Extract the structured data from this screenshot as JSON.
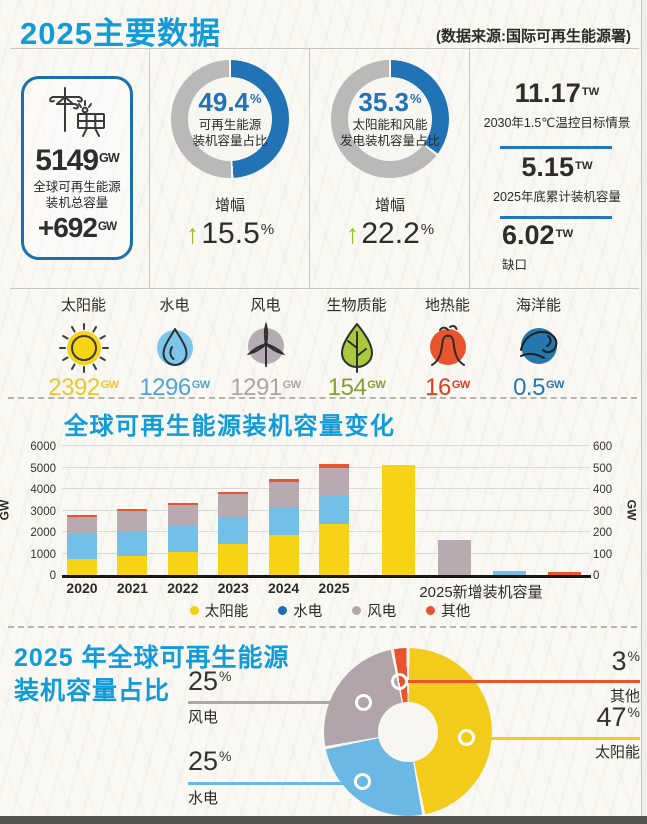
{
  "header": {
    "title": "2025主要数据",
    "source": "(数据来源:国际可再生能源署)"
  },
  "units": {
    "gw": "GW",
    "tw": "TW",
    "pct": "%",
    "up_arrow": "↑"
  },
  "colors": {
    "accent_blue": "#129bd9",
    "donut_blue": "#2273b5",
    "donut_gray": "#b9b9b9",
    "growth_green": "#8fc31f",
    "hole_bg": "#f8f6f1",
    "axis_black": "#171717"
  },
  "stats": {
    "total": {
      "value": "5149",
      "label_line1": "全球可再生能源",
      "label_line2": "装机总容量",
      "delta": "+692"
    },
    "share_renewable": {
      "pct": 49.4,
      "pct_text": "49.4",
      "caption_line1": "可再生能源",
      "caption_line2": "装机容量占比",
      "growth_label": "增幅",
      "growth": "15.5"
    },
    "share_solar_wind": {
      "pct": 35.3,
      "pct_text": "35.3",
      "caption_line1": "太阳能和风能",
      "caption_line2": "发电装机容量占比",
      "growth_label": "增幅",
      "growth": "22.2"
    },
    "targets": [
      {
        "value": "11.17",
        "label": "2030年1.5℃温控目标情景"
      },
      {
        "value": "5.15",
        "label": "2025年底累计装机容量"
      },
      {
        "value": "6.02",
        "label": "缺口"
      }
    ]
  },
  "energy_types": [
    {
      "name": "太阳能",
      "value": "2392",
      "icon": "sun-icon",
      "color": "#f6d315",
      "value_color": "#efc52c"
    },
    {
      "name": "水电",
      "value": "1296",
      "icon": "water-drop-icon",
      "color": "#7cc5ec",
      "value_color": "#4da4d9"
    },
    {
      "name": "风电",
      "value": "1291",
      "icon": "wind-turbine-icon",
      "color": "#b7acb3",
      "value_color": "#aba4a9"
    },
    {
      "name": "生物质能",
      "value": "154",
      "icon": "leaf-icon",
      "color": "#abc93f",
      "value_color": "#879e37"
    },
    {
      "name": "地热能",
      "value": "16",
      "icon": "geothermal-icon",
      "color": "#e8542b",
      "value_color": "#e03c20"
    },
    {
      "name": "海洋能",
      "value": "0.5",
      "icon": "ocean-wave-icon",
      "color": "#2478ad",
      "value_color": "#2478ad"
    }
  ],
  "capacity_section": {
    "axis_unit": "GW",
    "legend": [
      {
        "label": "太阳能",
        "dot_color": "#f3cd0f"
      },
      {
        "label": "水电",
        "dot_color": "#1f6db6"
      },
      {
        "label": "风电",
        "dot_color": "#b3a6ad"
      },
      {
        "label": "其他",
        "dot_color": "#e8502e"
      }
    ]
  },
  "share_section": {
    "title_line1": "2025 年全球可再生能源",
    "title_line2": "装机容量占比",
    "callouts": {
      "wind": {
        "pct": "25",
        "name": "风电",
        "color": "#b2a4ab"
      },
      "hydro": {
        "pct": "25",
        "name": "水电",
        "color": "#6cb8e4"
      },
      "other": {
        "pct": "3",
        "name": "其他",
        "color": "#e8542b"
      },
      "solar": {
        "pct": "47",
        "name": "太阳能",
        "color": "#f3cb1a"
      }
    }
  },
  "chart_data": [
    {
      "type": "bar",
      "stacked": true,
      "title": "全球可再生能源装机容量变化",
      "ylabel": "GW",
      "ylim": [
        0,
        6000
      ],
      "yticks": [
        0,
        1000,
        2000,
        3000,
        4000,
        5000,
        6000
      ],
      "grid": true,
      "legend_position": "bottom",
      "categories": [
        "2020",
        "2021",
        "2022",
        "2023",
        "2024",
        "2025"
      ],
      "series": [
        {
          "name": "太阳能",
          "color": "#f6d315",
          "values": [
            750,
            870,
            1070,
            1420,
            1870,
            2392
          ]
        },
        {
          "name": "水电",
          "color": "#72c0e8",
          "values": [
            1150,
            1200,
            1230,
            1280,
            1280,
            1296
          ]
        },
        {
          "name": "风电",
          "color": "#b9aab1",
          "values": [
            800,
            930,
            950,
            1050,
            1180,
            1291
          ]
        },
        {
          "name": "其他",
          "color": "#e8542b",
          "values": [
            100,
            90,
            120,
            120,
            120,
            170
          ]
        }
      ]
    },
    {
      "type": "bar",
      "title": "2025新增装机容量",
      "ylabel": "GW",
      "ylim": [
        0,
        600
      ],
      "yticks": [
        0,
        100,
        200,
        300,
        400,
        500,
        600
      ],
      "categories": [
        "太阳能",
        "风电",
        "水电",
        "其他"
      ],
      "values": [
        510,
        165,
        20,
        15
      ],
      "colors": [
        "#f6d315",
        "#b9aab1",
        "#72c0e8",
        "#e8542b"
      ]
    },
    {
      "type": "pie",
      "donut": true,
      "title": "2025年全球可再生能源装机容量占比",
      "labels": [
        "太阳能",
        "水电",
        "风电",
        "其他"
      ],
      "values": [
        47,
        25,
        25,
        3
      ],
      "colors": [
        "#f3cb1a",
        "#6cb8e4",
        "#b2a4ab",
        "#e8542b"
      ],
      "start_angle_deg": 0,
      "direction": "clockwise"
    }
  ]
}
